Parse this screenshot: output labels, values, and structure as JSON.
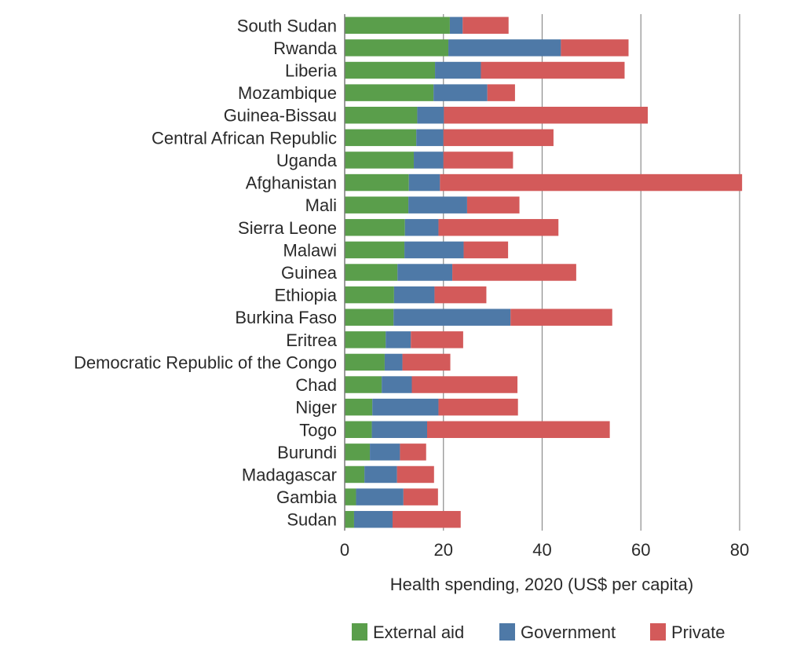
{
  "chart_data": {
    "type": "bar",
    "orientation": "horizontal",
    "stacked": true,
    "title": "",
    "xlabel": "Health spending, 2020 (US$ per capita)",
    "ylabel": "",
    "xlim": [
      0,
      80
    ],
    "xticks": [
      "0",
      "20",
      "40",
      "60",
      "80"
    ],
    "grid": "vertical",
    "legend_position": "bottom",
    "categories": [
      "South Sudan",
      "Rwanda",
      "Liberia",
      "Mozambique",
      "Guinea-Bissau",
      "Central African Republic",
      "Uganda",
      "Afghanistan",
      "Mali",
      "Sierra Leone",
      "Malawi",
      "Guinea",
      "Ethiopia",
      "Burkina Faso",
      "Eritrea",
      "Democratic Republic of the Congo",
      "Chad",
      "Niger",
      "Togo",
      "Burundi",
      "Madagascar",
      "Gambia",
      "Sudan"
    ],
    "series": [
      {
        "name": "External aid",
        "color": "#5a9e4b",
        "values": [
          21.3,
          21.0,
          18.3,
          18.0,
          14.7,
          14.5,
          14.0,
          13.0,
          12.9,
          12.2,
          12.1,
          10.7,
          10.0,
          9.9,
          8.3,
          8.1,
          7.5,
          5.6,
          5.5,
          5.1,
          4.0,
          2.3,
          1.9
        ]
      },
      {
        "name": "Government",
        "color": "#4e79a7",
        "values": [
          2.6,
          22.8,
          9.3,
          10.9,
          5.4,
          5.5,
          6.0,
          6.3,
          11.9,
          6.8,
          12.0,
          11.1,
          8.2,
          23.7,
          5.1,
          3.6,
          6.1,
          13.4,
          11.2,
          6.1,
          6.6,
          9.6,
          7.8
        ]
      },
      {
        "name": "Private",
        "color": "#d35a5a",
        "values": [
          9.3,
          13.7,
          29.1,
          5.6,
          41.3,
          22.3,
          14.1,
          61.2,
          10.6,
          24.3,
          9.0,
          25.1,
          10.5,
          20.6,
          10.6,
          9.7,
          21.4,
          16.1,
          37.0,
          5.3,
          7.5,
          7.0,
          13.8
        ]
      }
    ]
  }
}
